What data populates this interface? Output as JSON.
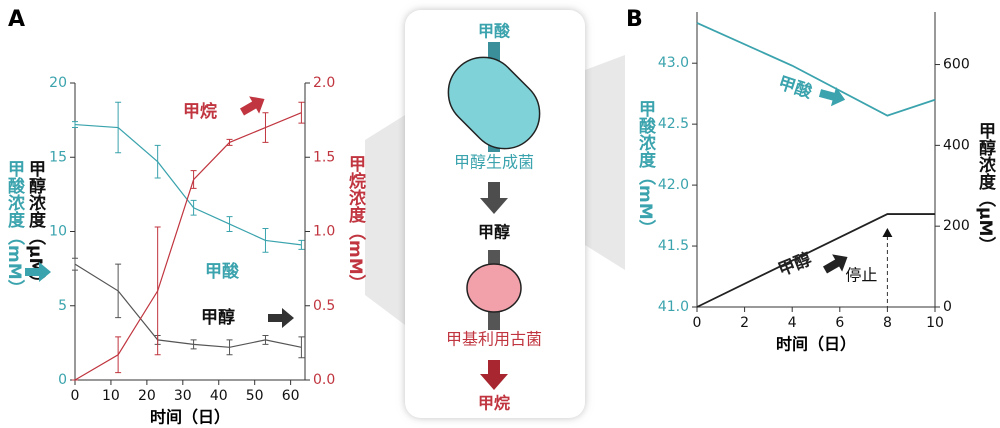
{
  "chart_data": [
    {
      "type": "line",
      "panel": "A",
      "x": [
        0,
        12,
        23,
        33,
        43,
        53,
        63
      ],
      "xlim": [
        0,
        64
      ],
      "xticks": [
        0,
        10,
        20,
        30,
        40,
        50,
        60
      ],
      "xlabel": "时间（日）",
      "ylim": [
        0,
        20
      ],
      "yticks": [
        0,
        5,
        10,
        15,
        20
      ],
      "ylabels": [
        "甲酸浓度（mM）",
        "甲醇浓度（μM）"
      ],
      "y2lim": [
        0,
        2
      ],
      "y2ticks": [
        {
          "value": 0,
          "label": "0.0"
        },
        0.5,
        {
          "value": 1,
          "label": "1.0"
        },
        1.5,
        {
          "value": 2,
          "label": "2.0"
        }
      ],
      "y2label": "甲烷浓度（mM）",
      "series": [
        {
          "name": "甲酸",
          "color": "#3aa3ad",
          "values": [
            17.2,
            17.0,
            14.7,
            11.6,
            10.5,
            9.4,
            9.1
          ],
          "errors": [
            0.2,
            1.7,
            1.1,
            0.5,
            0.5,
            0.8,
            0.3
          ]
        },
        {
          "name": "甲醇",
          "color": "#555555",
          "values": [
            7.8,
            6.0,
            2.7,
            2.4,
            2.2,
            2.7,
            2.2
          ],
          "errors": [
            0.4,
            1.8,
            0.3,
            0.3,
            0.5,
            0.3,
            0.7
          ]
        },
        {
          "name": "甲烷",
          "color": "#c0353f",
          "axis": "y2",
          "values": [
            0,
            0.17,
            0.6,
            1.35,
            1.6,
            1.7,
            1.8
          ],
          "errors": [
            0,
            0.12,
            0.43,
            0.06,
            0.02,
            0.1,
            0.07
          ]
        }
      ]
    },
    {
      "type": "line",
      "panel": "B",
      "x": [
        0,
        4,
        8,
        10
      ],
      "xlim": [
        0,
        10
      ],
      "xticks": [
        0,
        2,
        4,
        6,
        8,
        10
      ],
      "xlabel": "时间（日）",
      "ylim": [
        41,
        43.42
      ],
      "yticks": [
        {
          "value": 41,
          "label": "41.0"
        },
        41.5,
        {
          "value": 42,
          "label": "42.0"
        },
        42.5,
        {
          "value": 43,
          "label": "43.0"
        }
      ],
      "ylabels": [
        "甲酸浓度（mM）"
      ],
      "y2lim": [
        0,
        730
      ],
      "y2ticks": [
        0,
        200,
        400,
        600
      ],
      "y2label": "甲醇浓度（μM）",
      "series": [
        {
          "name": "甲酸",
          "color": "#3aa3ad",
          "values": [
            43.33,
            42.98,
            42.57,
            42.7
          ]
        },
        {
          "name": "甲醇",
          "color": "#222222",
          "axis": "y2",
          "values": [
            0,
            115,
            230,
            230
          ]
        }
      ],
      "annotation": "停止",
      "stop_x": 8
    }
  ],
  "diagram": {
    "top": "甲酸",
    "bacterium": "甲醇生成菌",
    "middle": "甲醇",
    "archaeon": "甲基利用古菌",
    "bottom": "甲烷"
  }
}
